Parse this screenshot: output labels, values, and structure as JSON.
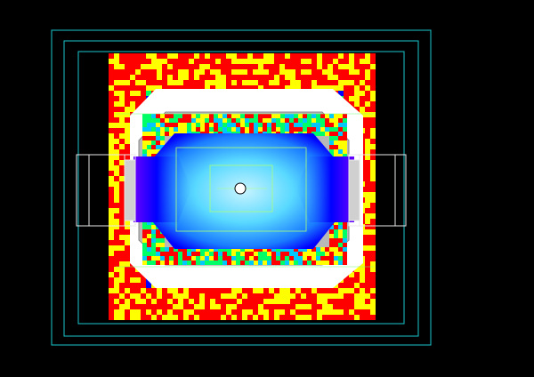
{
  "viewer": {
    "background": "#000000",
    "frame_color": "#19c8d2",
    "sensor_marker": "circle-marker",
    "structure_color": "#ffffff",
    "outline_color": "#bdbdbd",
    "heatmap_palette": [
      "#0000ff",
      "#00c8ff",
      "#00ff66",
      "#ffff00",
      "#ff0000",
      "#9933ff"
    ]
  }
}
